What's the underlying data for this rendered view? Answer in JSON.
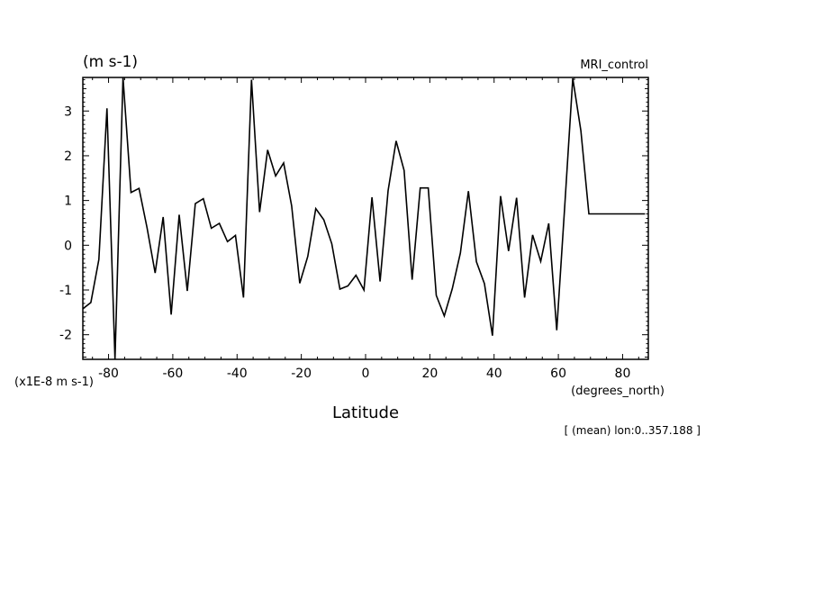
{
  "chart_data": {
    "type": "line",
    "top_left_label": "(m s-1)",
    "top_right_label": "MRI_control",
    "xlabel": "Latitude",
    "x_units": "(degrees_north)",
    "y_scale_note": "(x1E-8 m s-1)",
    "footnote": "[ (mean) lon:0..357.188 ]",
    "xlim": [
      -88,
      88
    ],
    "ylim": [
      -2.55,
      3.75
    ],
    "xticks": [
      -80,
      -60,
      -40,
      -20,
      0,
      20,
      40,
      60,
      80
    ],
    "xtick_labels": [
      "-80",
      "-60",
      "-40",
      "-20",
      "0",
      "20",
      "40",
      "60",
      "80"
    ],
    "yticks": [
      -2,
      -1,
      0,
      1,
      2,
      3
    ],
    "ytick_labels": [
      "-2",
      "-1",
      "0",
      "1",
      "2",
      "3"
    ],
    "grid": false,
    "series": [
      {
        "color": "#000000",
        "x": [
          -88,
          -85.5,
          -83,
          -80.5,
          -78,
          -75.5,
          -73,
          -70.5,
          -68,
          -65.5,
          -63,
          -60.5,
          -58,
          -55.5,
          -53,
          -50.5,
          -48,
          -45.5,
          -43,
          -40.5,
          -38,
          -35.5,
          -33,
          -30.5,
          -28,
          -25.5,
          -23,
          -20.5,
          -18,
          -15.5,
          -13,
          -10.5,
          -8,
          -5.5,
          -3,
          -0.5,
          2,
          4.5,
          7,
          9.5,
          12,
          14.5,
          17,
          19.5,
          22,
          24.5,
          27,
          29.5,
          32,
          34.5,
          37,
          39.5,
          42,
          44.5,
          47,
          49.5,
          52,
          54.5,
          57,
          59.5,
          62,
          64.5,
          67,
          69.5,
          72,
          74.5,
          77,
          79.5,
          82,
          84.5,
          87
        ],
        "y": [
          -1.42,
          -1.28,
          -0.32,
          3.06,
          -2.55,
          3.75,
          1.18,
          1.27,
          0.38,
          -0.62,
          0.63,
          -1.55,
          0.68,
          -1.02,
          0.93,
          1.04,
          0.38,
          0.49,
          0.08,
          0.22,
          -1.17,
          3.7,
          0.74,
          2.13,
          1.55,
          1.84,
          0.88,
          -0.85,
          -0.25,
          0.82,
          0.57,
          0.03,
          -0.98,
          -0.91,
          -0.67,
          -1.0,
          1.07,
          -0.81,
          1.22,
          2.33,
          1.67,
          -0.77,
          1.28,
          1.28,
          -1.12,
          -1.58,
          -0.97,
          -0.17,
          1.21,
          -0.37,
          -0.86,
          -2.02,
          1.1,
          -0.13,
          1.06,
          -1.17,
          0.23,
          -0.36,
          0.49,
          -1.9,
          0.88,
          3.73,
          2.56,
          0.7,
          0.7,
          0.7,
          0.7,
          0.7,
          0.7,
          0.7,
          0.7
        ]
      }
    ]
  }
}
